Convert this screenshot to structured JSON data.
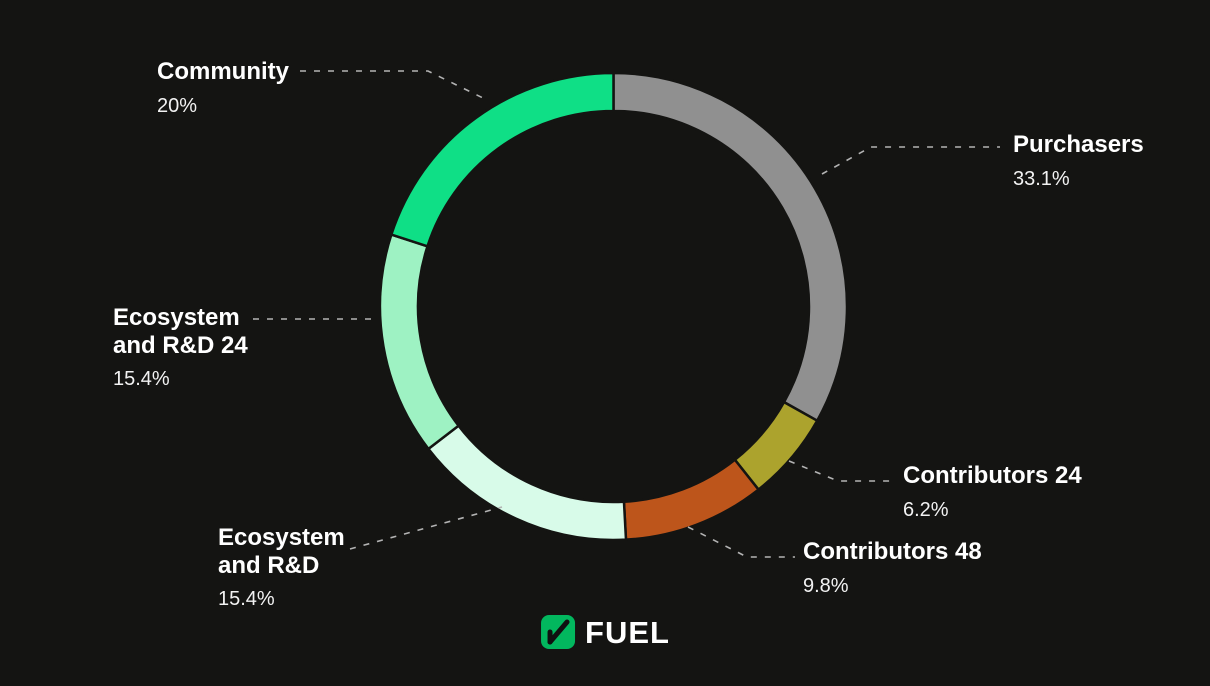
{
  "background": "#141412",
  "chart_data": {
    "type": "pie",
    "donut": true,
    "title": "",
    "start_angle_deg": 0,
    "direction": "clockwise",
    "legend_position": "callout-labels",
    "categories": [
      "Purchasers",
      "Contributors 24",
      "Contributors 48",
      "Ecosystem and R&D",
      "Ecosystem and R&D 24",
      "Community"
    ],
    "values": [
      33.1,
      6.2,
      9.8,
      15.4,
      15.4,
      20
    ],
    "segments": [
      {
        "label": "Purchasers",
        "value": 33.1,
        "pct_label": "33.1%",
        "color": "#909090"
      },
      {
        "label": "Contributors 24",
        "value": 6.2,
        "pct_label": "6.2%",
        "color": "#aca32d"
      },
      {
        "label": "Contributors 48",
        "value": 9.8,
        "pct_label": "9.8%",
        "color": "#bd551b"
      },
      {
        "label": "Ecosystem and R&D",
        "value": 15.4,
        "pct_label": "15.4%",
        "color": "#d8fbe9"
      },
      {
        "label": "Ecosystem and R&D 24",
        "value": 15.4,
        "pct_label": "15.4%",
        "color": "#9ef2c3"
      },
      {
        "label": "Community",
        "value": 20,
        "pct_label": "20%",
        "color": "#0fdf86"
      }
    ]
  },
  "logo": {
    "text": "FUEL",
    "mark_color": "#02b75e",
    "mark_slash_color": "#101010"
  }
}
